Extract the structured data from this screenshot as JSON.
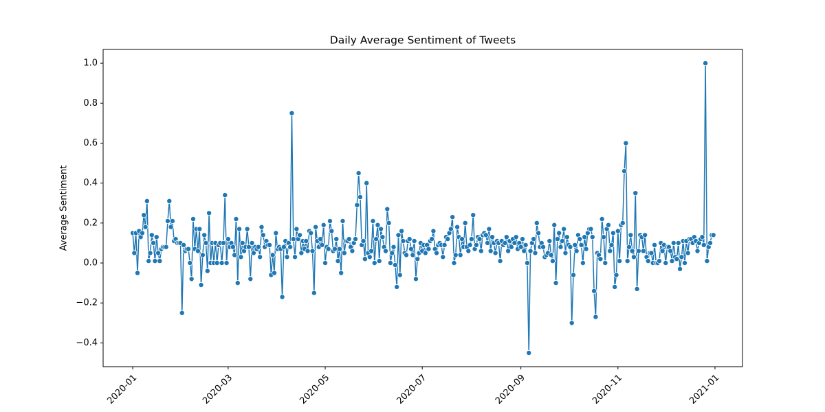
{
  "chart_data": {
    "type": "line",
    "title": "Daily Average Sentiment of Tweets",
    "ylabel": "Average Sentiment",
    "x": [
      0,
      1,
      2,
      3,
      4,
      5,
      6,
      7,
      8,
      9,
      10,
      11,
      12,
      13,
      14,
      15,
      16,
      17,
      18,
      19,
      20,
      21,
      22,
      23,
      24,
      25,
      26,
      27,
      28,
      29,
      30,
      31,
      32,
      33,
      34,
      35,
      36,
      37,
      38,
      39,
      40,
      41,
      42,
      43,
      44,
      45,
      46,
      47,
      48,
      49,
      50,
      51,
      52,
      53,
      54,
      55,
      56,
      57,
      58,
      59,
      60,
      61,
      62,
      63,
      64,
      65,
      66,
      67,
      68,
      69,
      70,
      71,
      72,
      73,
      74,
      75,
      76,
      77,
      78,
      79,
      80,
      81,
      82,
      83,
      84,
      85,
      86,
      87,
      88,
      89,
      90,
      91,
      92,
      93,
      94,
      95,
      96,
      97,
      98,
      99,
      100,
      101,
      102,
      103,
      104,
      105,
      106,
      107,
      108,
      109,
      110,
      111,
      112,
      113,
      114,
      115,
      116,
      117,
      118,
      119,
      120,
      121,
      122,
      123,
      124,
      125,
      126,
      127,
      128,
      129,
      130,
      131,
      132,
      133,
      134,
      135,
      136,
      137,
      138,
      139,
      140,
      141,
      142,
      143,
      144,
      145,
      146,
      147,
      148,
      149,
      150,
      151,
      152,
      153,
      154,
      155,
      156,
      157,
      158,
      159,
      160,
      161,
      162,
      163,
      164,
      165,
      166,
      167,
      168,
      169,
      170,
      171,
      172,
      173,
      174,
      175,
      176,
      177,
      178,
      179,
      180,
      181,
      182,
      183,
      184,
      185,
      186,
      187,
      188,
      189,
      190,
      191,
      192,
      193,
      194,
      195,
      196,
      197,
      198,
      199,
      200,
      201,
      202,
      203,
      204,
      205,
      206,
      207,
      208,
      209,
      210,
      211,
      212,
      213,
      214,
      215,
      216,
      217,
      218,
      219,
      220,
      221,
      222,
      223,
      224,
      225,
      226,
      227,
      228,
      229,
      230,
      231,
      232,
      233,
      234,
      235,
      236,
      237,
      238,
      239,
      240,
      241,
      242,
      243,
      244,
      245,
      246,
      247,
      248,
      249,
      250,
      251,
      252,
      253,
      254,
      255,
      256,
      257,
      258,
      259,
      260,
      261,
      262,
      263,
      264,
      265,
      266,
      267,
      268,
      269,
      270,
      271,
      272,
      273,
      274,
      275,
      276,
      277,
      278,
      279,
      280,
      281,
      282,
      283,
      284,
      285,
      286,
      287,
      288,
      289,
      290,
      291,
      292,
      293,
      294,
      295,
      296,
      297,
      298,
      299,
      300,
      301,
      302,
      303,
      304,
      305,
      306,
      307,
      308,
      309,
      310,
      311,
      312,
      313,
      314,
      315,
      316,
      317,
      318,
      319,
      320,
      321,
      322,
      323,
      324,
      325,
      326,
      327,
      328,
      329,
      330,
      331,
      332,
      333,
      334,
      335,
      336,
      337,
      338,
      339,
      340,
      341,
      342,
      343,
      344,
      345,
      346,
      347,
      348,
      349,
      350,
      351,
      352,
      353,
      354,
      355,
      356,
      357,
      358,
      359,
      360,
      361,
      362,
      363,
      364,
      365
    ],
    "series": [
      {
        "color": "#1f77b4",
        "values": [
          0.15,
          0.05,
          0.15,
          -0.05,
          0.16,
          0.13,
          0.15,
          0.24,
          0.18,
          0.31,
          0.01,
          0.05,
          0.14,
          0.1,
          0.01,
          0.13,
          0.05,
          0.01,
          0.07,
          0.08,
          0.08,
          0.08,
          0.21,
          0.31,
          0.18,
          0.21,
          0.11,
          0.12,
          0.1,
          0.1,
          0.1,
          -0.25,
          0.09,
          0.06,
          0.07,
          0.07,
          0.0,
          -0.08,
          0.22,
          0.07,
          0.17,
          0.06,
          0.17,
          -0.11,
          0.04,
          0.14,
          0.1,
          -0.04,
          0.25,
          0.0,
          0.1,
          0.0,
          0.1,
          0.0,
          0.09,
          0.1,
          0.0,
          0.1,
          0.34,
          0.0,
          0.12,
          0.08,
          0.1,
          0.08,
          0.04,
          0.22,
          -0.1,
          0.17,
          0.03,
          0.1,
          0.06,
          0.08,
          0.17,
          0.08,
          -0.08,
          0.1,
          0.05,
          0.08,
          0.07,
          0.08,
          0.03,
          0.18,
          0.14,
          0.08,
          0.11,
          0.09,
          0.09,
          -0.06,
          0.04,
          -0.05,
          0.15,
          0.07,
          0.08,
          0.07,
          -0.17,
          0.08,
          0.11,
          0.03,
          0.1,
          0.08,
          0.75,
          0.12,
          0.03,
          0.17,
          0.12,
          0.14,
          0.05,
          0.11,
          0.07,
          0.11,
          0.06,
          0.16,
          0.15,
          0.06,
          -0.15,
          0.18,
          0.11,
          0.08,
          0.12,
          0.09,
          0.19,
          0.0,
          0.08,
          0.07,
          0.21,
          0.16,
          0.06,
          0.07,
          0.12,
          0.01,
          0.07,
          -0.05,
          0.21,
          0.05,
          0.11,
          0.11,
          0.12,
          0.08,
          0.06,
          0.1,
          0.12,
          0.29,
          0.45,
          0.33,
          0.09,
          0.11,
          0.02,
          0.4,
          0.05,
          0.03,
          0.06,
          0.21,
          0.0,
          0.12,
          0.19,
          0.01,
          0.17,
          0.13,
          0.08,
          0.06,
          0.27,
          0.2,
          0.0,
          0.05,
          0.08,
          -0.01,
          -0.12,
          0.14,
          -0.06,
          0.16,
          0.11,
          0.05,
          0.04,
          0.11,
          0.12,
          0.07,
          0.04,
          0.11,
          -0.08,
          0.02,
          0.05,
          0.1,
          0.06,
          0.09,
          0.05,
          0.09,
          0.07,
          0.11,
          0.12,
          0.16,
          0.07,
          0.05,
          0.09,
          0.1,
          0.09,
          0.03,
          0.09,
          0.13,
          0.12,
          0.15,
          0.17,
          0.23,
          0.0,
          0.04,
          0.18,
          0.13,
          0.04,
          0.12,
          0.08,
          0.2,
          0.08,
          0.06,
          0.09,
          0.12,
          0.24,
          0.07,
          0.09,
          0.13,
          0.12,
          0.06,
          0.14,
          0.15,
          0.14,
          0.1,
          0.17,
          0.06,
          0.13,
          0.1,
          0.05,
          0.11,
          0.1,
          0.01,
          0.11,
          0.09,
          0.1,
          0.13,
          0.06,
          0.11,
          0.08,
          0.12,
          0.1,
          0.13,
          0.07,
          0.1,
          0.08,
          0.12,
          0.06,
          0.09,
          0.0,
          -0.45,
          0.06,
          0.1,
          0.12,
          0.05,
          0.2,
          0.15,
          0.08,
          0.1,
          0.08,
          0.03,
          0.04,
          0.05,
          0.11,
          0.04,
          0.01,
          0.19,
          -0.1,
          0.12,
          0.15,
          0.08,
          0.11,
          0.17,
          0.05,
          0.13,
          0.09,
          0.08,
          -0.3,
          -0.06,
          0.09,
          0.06,
          0.14,
          0.12,
          0.09,
          0.0,
          0.13,
          0.07,
          0.15,
          0.17,
          0.17,
          0.13,
          -0.14,
          -0.27,
          0.05,
          0.04,
          0.02,
          0.22,
          0.13,
          0.0,
          0.17,
          0.19,
          0.06,
          0.09,
          0.15,
          -0.12,
          -0.06,
          0.16,
          0.01,
          0.19,
          0.2,
          0.46,
          0.6,
          0.01,
          0.08,
          0.14,
          0.06,
          0.03,
          0.35,
          -0.13,
          0.06,
          0.14,
          0.13,
          0.06,
          0.14,
          0.03,
          0.01,
          0.05,
          0.05,
          0.0,
          0.09,
          0.0,
          0.0,
          0.01,
          0.1,
          0.06,
          0.09,
          0.0,
          0.08,
          0.08,
          0.06,
          0.01,
          0.1,
          0.03,
          0.02,
          0.1,
          -0.03,
          0.03,
          0.11,
          0.0,
          0.11,
          0.05,
          0.12,
          0.12,
          0.1,
          0.13,
          0.11,
          0.06,
          0.1,
          0.12,
          0.13,
          0.09,
          1.0,
          0.01,
          0.08,
          0.1,
          0.14,
          0.14
        ]
      }
    ],
    "xlim": [
      -18.6,
      383.3
    ],
    "ylim": [
      -0.519,
      1.069
    ],
    "xticks": [
      {
        "value": 0,
        "label": "2020-01"
      },
      {
        "value": 60,
        "label": "2020-03"
      },
      {
        "value": 121,
        "label": "2020-05"
      },
      {
        "value": 182,
        "label": "2020-07"
      },
      {
        "value": 244,
        "label": "2020-09"
      },
      {
        "value": 305,
        "label": "2020-11"
      },
      {
        "value": 366,
        "label": "2021-01"
      }
    ],
    "yticks": [
      {
        "value": -0.4,
        "label": "−0.4"
      },
      {
        "value": -0.2,
        "label": "−0.2"
      },
      {
        "value": 0,
        "label": "0.0"
      },
      0.2,
      0.4,
      0.6,
      0.8,
      {
        "value": 1,
        "label": "1.0"
      }
    ]
  }
}
